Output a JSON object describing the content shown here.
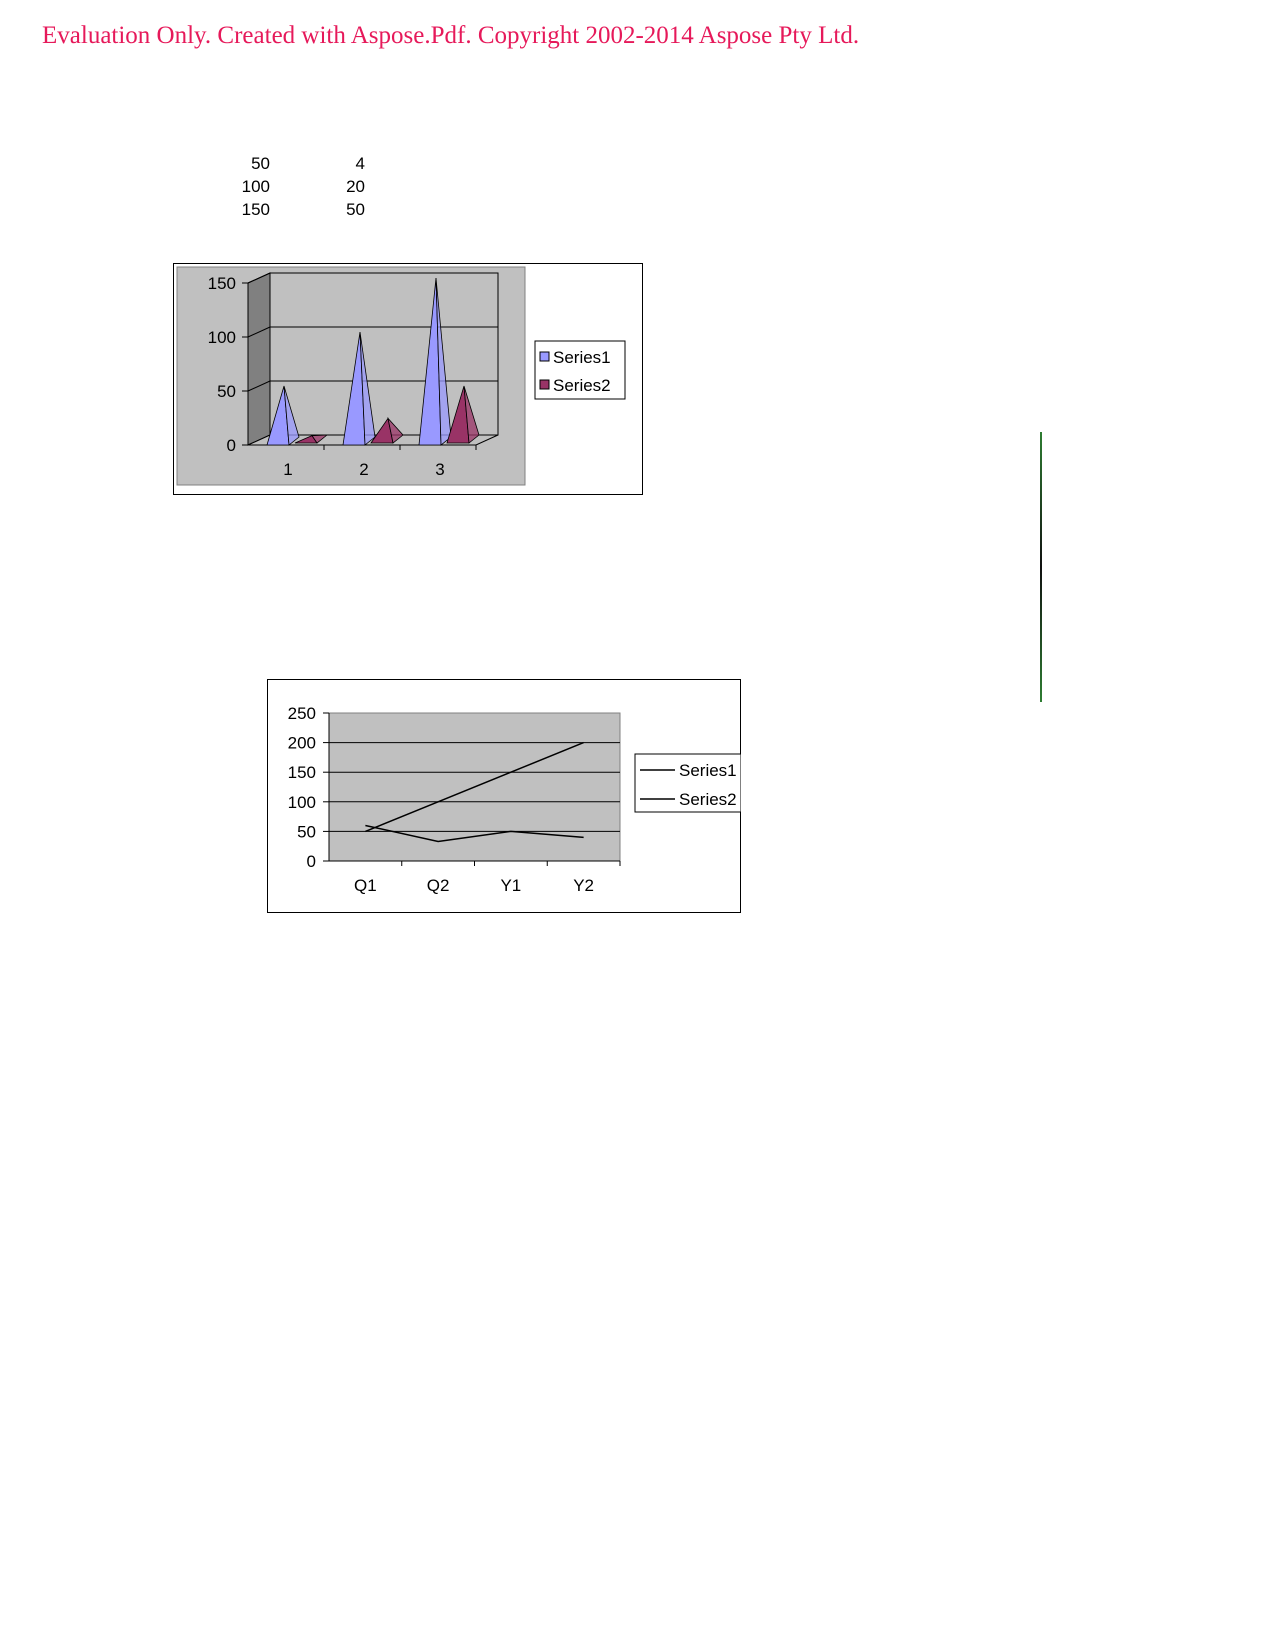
{
  "watermark": {
    "text": "Evaluation Only. Created with Aspose.Pdf. Copyright 2002-2014 Aspose Pty Ltd.",
    "color": "#e6195a"
  },
  "data_table": {
    "rows": [
      [
        "50",
        "4"
      ],
      [
        "100",
        "20"
      ],
      [
        "150",
        "50"
      ]
    ]
  },
  "chart_data": [
    {
      "type": "bar",
      "style": "3d-pyramid",
      "categories": [
        "1",
        "2",
        "3"
      ],
      "series": [
        {
          "name": "Series1",
          "values": [
            50,
            100,
            150
          ],
          "color": "#9999ff"
        },
        {
          "name": "Series2",
          "values": [
            4,
            20,
            50
          ],
          "color": "#993366"
        }
      ],
      "yticks": [
        "0",
        "50",
        "100",
        "150"
      ],
      "ylim": [
        0,
        150
      ],
      "grid": true,
      "legend": "right",
      "plot_background": "#c0c0c0"
    },
    {
      "type": "line",
      "categories": [
        "Q1",
        "Q2",
        "Y1",
        "Y2"
      ],
      "series": [
        {
          "name": "Series1",
          "values": [
            50,
            100,
            150,
            200
          ],
          "color": "#000000"
        },
        {
          "name": "Series2",
          "values": [
            60,
            33,
            50,
            40
          ],
          "color": "#000000"
        }
      ],
      "yticks": [
        "0",
        "50",
        "100",
        "150",
        "200",
        "250"
      ],
      "ylim": [
        0,
        250
      ],
      "grid": true,
      "legend": "right",
      "plot_background": "#c0c0c0"
    }
  ],
  "sidebar_line_color": "#2e7d32"
}
